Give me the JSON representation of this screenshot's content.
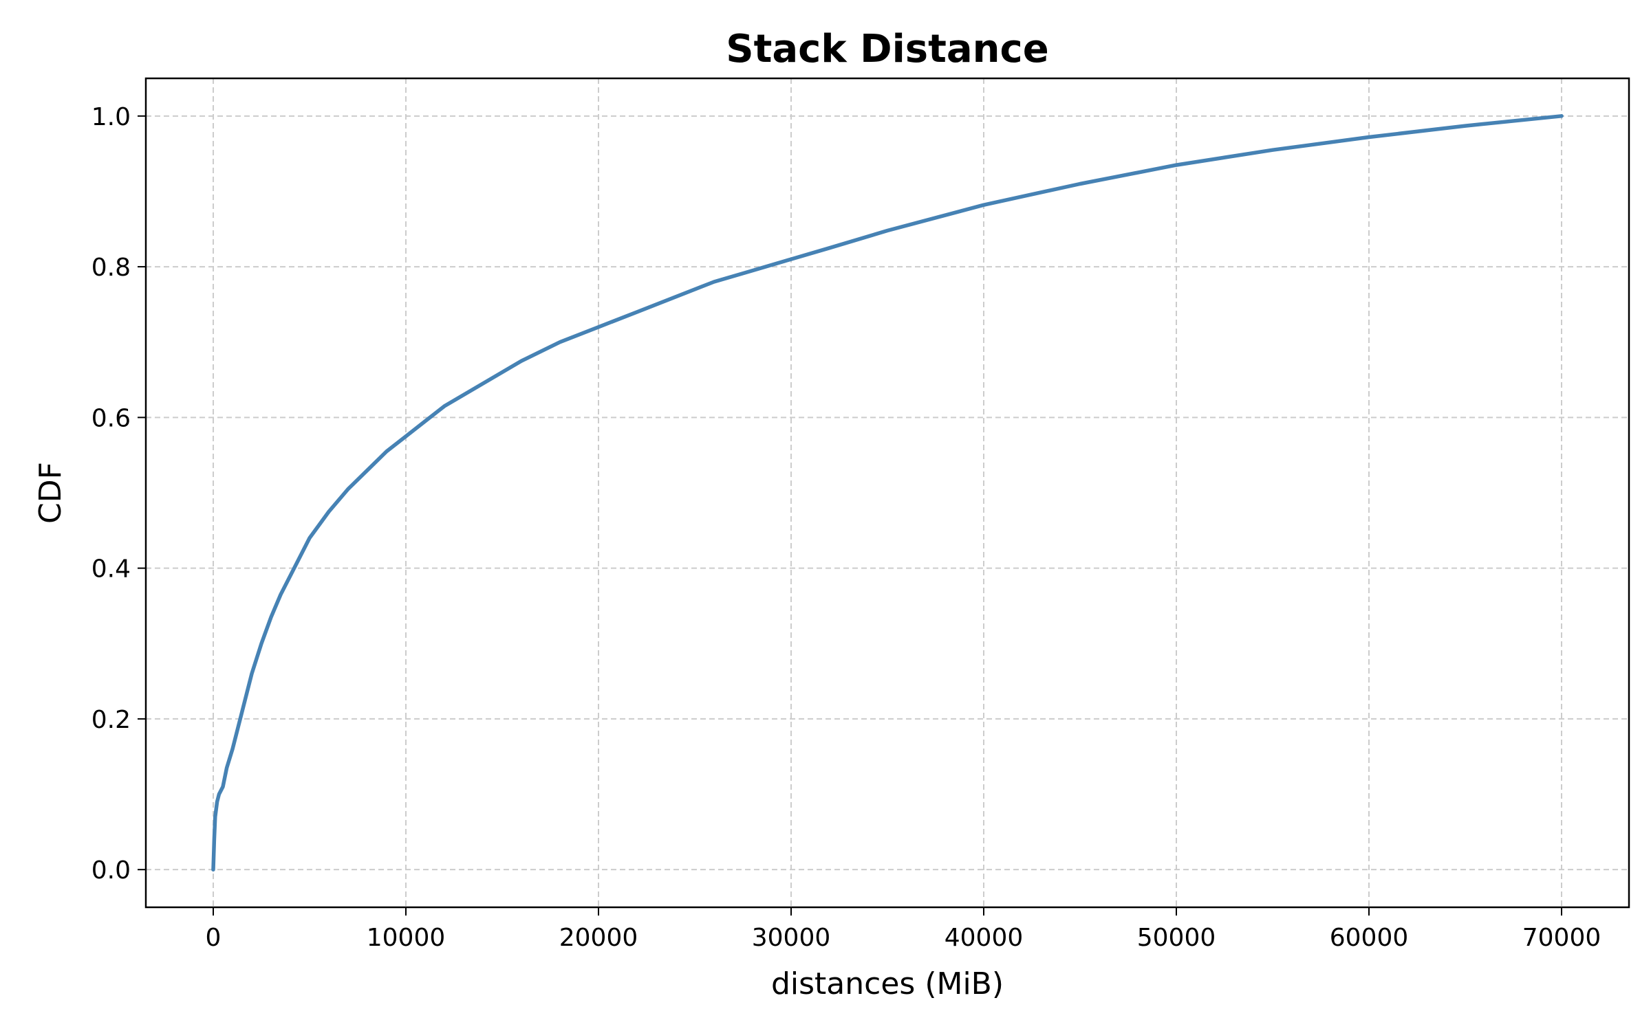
{
  "chart_data": {
    "type": "line",
    "title": "Stack Distance",
    "xlabel": "distances (MiB)",
    "ylabel": "CDF",
    "xlim": [
      -3500,
      73500
    ],
    "ylim": [
      -0.05,
      1.05
    ],
    "xticks": [
      0,
      10000,
      20000,
      30000,
      40000,
      50000,
      60000,
      70000
    ],
    "xtick_labels": [
      "0",
      "10000",
      "20000",
      "30000",
      "40000",
      "50000",
      "60000",
      "70000"
    ],
    "yticks": [
      0.0,
      0.2,
      0.4,
      0.6,
      0.8,
      1.0
    ],
    "ytick_labels": [
      "0.0",
      "0.2",
      "0.4",
      "0.6",
      "0.8",
      "1.0"
    ],
    "grid": true,
    "legend": false,
    "series": [
      {
        "color": "#4682b4",
        "x": [
          0,
          50,
          100,
          200,
          300,
          500,
          700,
          1000,
          1500,
          2000,
          2500,
          3000,
          3500,
          4000,
          5000,
          6000,
          7000,
          8000,
          9000,
          10000,
          11000,
          12000,
          14000,
          16000,
          18000,
          20000,
          22000,
          24000,
          26000,
          28000,
          30000,
          32000,
          35000,
          40000,
          45000,
          50000,
          55000,
          60000,
          65000,
          70000
        ],
        "y": [
          0.0,
          0.04,
          0.07,
          0.09,
          0.1,
          0.11,
          0.135,
          0.16,
          0.21,
          0.26,
          0.3,
          0.335,
          0.365,
          0.39,
          0.44,
          0.475,
          0.505,
          0.53,
          0.555,
          0.575,
          0.595,
          0.615,
          0.645,
          0.675,
          0.7,
          0.72,
          0.74,
          0.76,
          0.78,
          0.795,
          0.81,
          0.825,
          0.848,
          0.882,
          0.91,
          0.935,
          0.955,
          0.972,
          0.987,
          1.0
        ]
      }
    ]
  }
}
